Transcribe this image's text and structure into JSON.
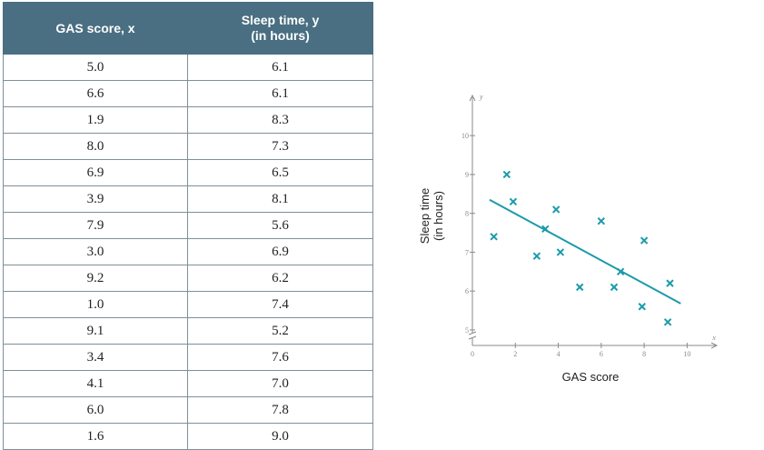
{
  "table": {
    "headers": [
      "GAS score, x",
      "Sleep time, y\n(in hours)"
    ],
    "rows": [
      [
        "5.0",
        "6.1"
      ],
      [
        "6.6",
        "6.1"
      ],
      [
        "1.9",
        "8.3"
      ],
      [
        "8.0",
        "7.3"
      ],
      [
        "6.9",
        "6.5"
      ],
      [
        "3.9",
        "8.1"
      ],
      [
        "7.9",
        "5.6"
      ],
      [
        "3.0",
        "6.9"
      ],
      [
        "9.2",
        "6.2"
      ],
      [
        "1.0",
        "7.4"
      ],
      [
        "9.1",
        "5.2"
      ],
      [
        "3.4",
        "7.6"
      ],
      [
        "4.1",
        "7.0"
      ],
      [
        "6.0",
        "7.8"
      ],
      [
        "1.6",
        "9.0"
      ]
    ]
  },
  "chart_data": {
    "type": "scatter",
    "title": "",
    "xlabel": "GAS score",
    "ylabel": "Sleep time\n(in hours)",
    "x_var": "x",
    "y_var": "y",
    "xlim": [
      0,
      11
    ],
    "ylim": [
      4.6,
      10.8
    ],
    "origin_label": "0",
    "x_ticks": [
      2,
      4,
      6,
      8,
      10
    ],
    "y_ticks": [
      5,
      6,
      7,
      8,
      9,
      10
    ],
    "y_axis_break": true,
    "marker": "x",
    "color": "#1b9aaa",
    "points": [
      [
        5.0,
        6.1
      ],
      [
        6.6,
        6.1
      ],
      [
        1.9,
        8.3
      ],
      [
        8.0,
        7.3
      ],
      [
        6.9,
        6.5
      ],
      [
        3.9,
        8.1
      ],
      [
        7.9,
        5.6
      ],
      [
        3.0,
        6.9
      ],
      [
        9.2,
        6.2
      ],
      [
        1.0,
        7.4
      ],
      [
        9.1,
        5.2
      ],
      [
        3.4,
        7.6
      ],
      [
        4.1,
        7.0
      ],
      [
        6.0,
        7.8
      ],
      [
        1.6,
        9.0
      ]
    ],
    "trend_line": {
      "x": [
        0.8,
        9.7
      ],
      "y": [
        8.35,
        5.68
      ]
    }
  }
}
